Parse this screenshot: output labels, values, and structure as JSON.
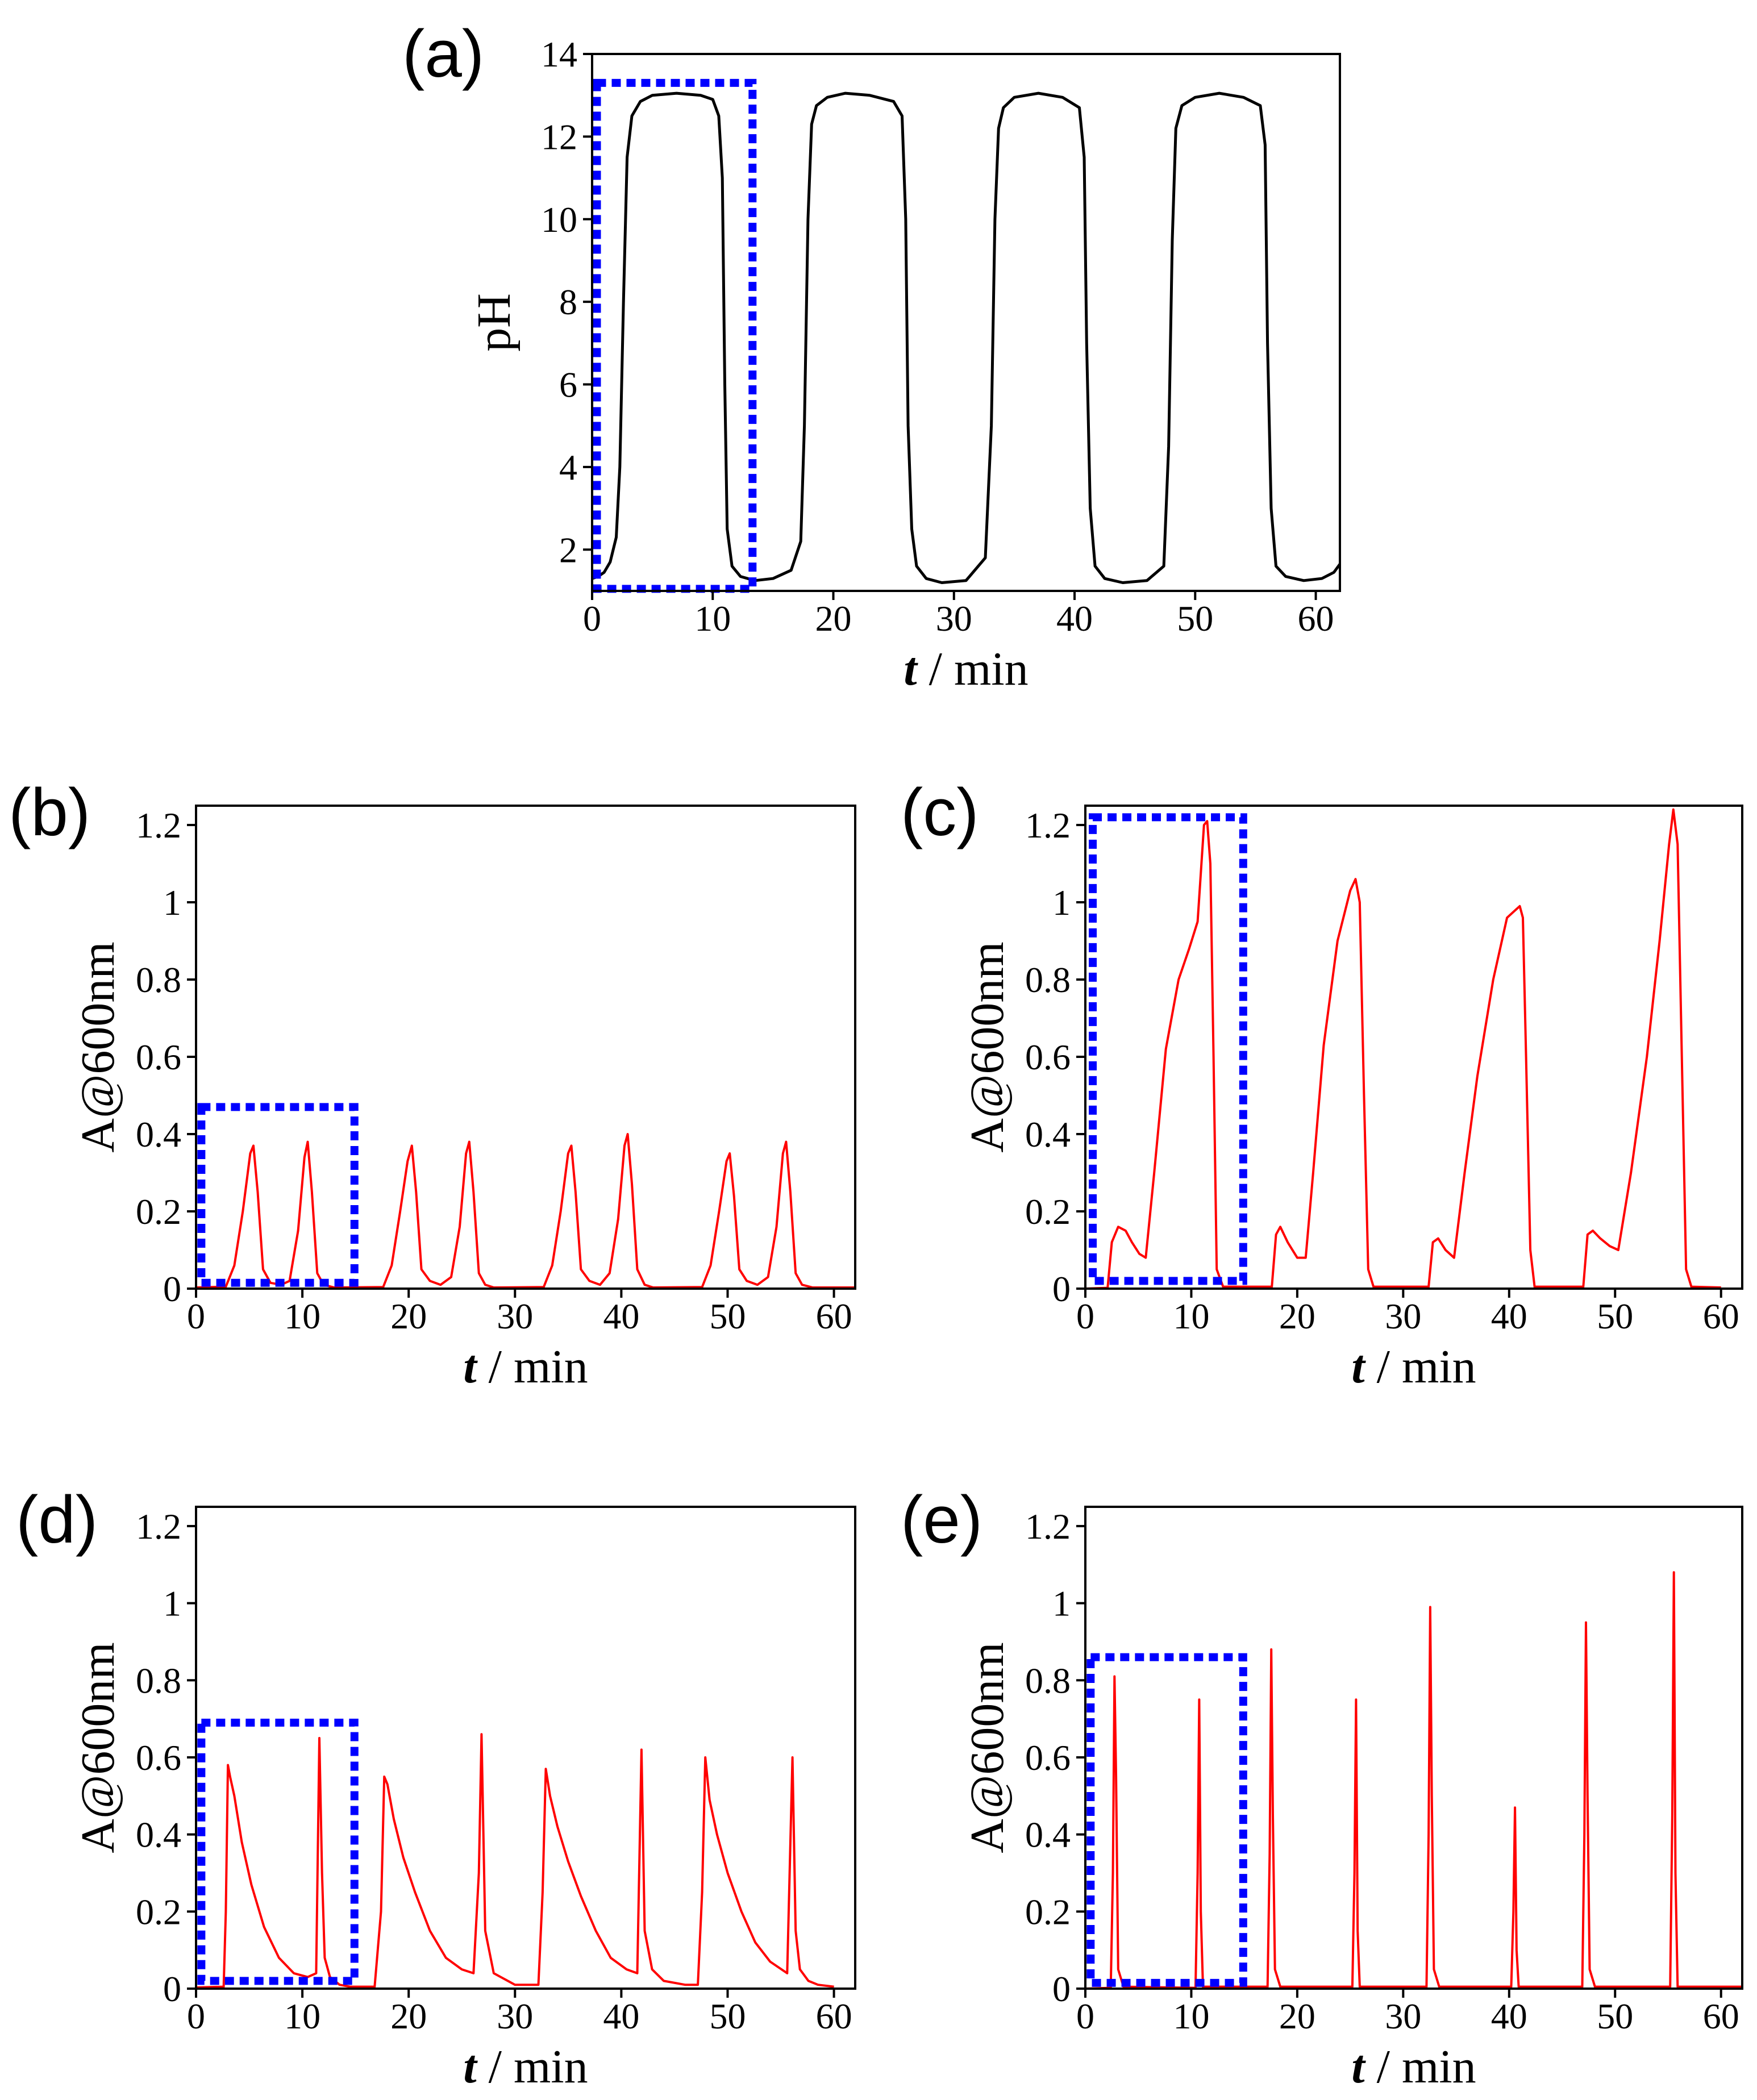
{
  "figure": {
    "colors": {
      "ph_line": "#000000",
      "absorbance_line": "#ff0000",
      "highlight_box": "#0000ff",
      "axes": "#000000",
      "background": "#ffffff"
    }
  },
  "chart_data": [
    {
      "id": "a",
      "panel_label": "(a)",
      "type": "line",
      "title": "",
      "xlabel_var": "t",
      "xlabel_unit": "/ min",
      "ylabel": "pH",
      "xlim": [
        0,
        62
      ],
      "ylim": [
        1,
        14
      ],
      "xticks": [
        0,
        10,
        20,
        30,
        40,
        50,
        60
      ],
      "yticks": [
        2,
        4,
        6,
        8,
        10,
        12,
        14
      ],
      "series": [
        {
          "name": "pH",
          "color": "#000000",
          "x": [
            0,
            0.5,
            1,
            1.5,
            2,
            2.3,
            2.6,
            2.9,
            3.3,
            4,
            5,
            7,
            9,
            10,
            10.5,
            10.8,
            11,
            11.2,
            11.6,
            12.3,
            13.5,
            15,
            16.5,
            17.3,
            17.6,
            17.9,
            18.2,
            18.6,
            19.5,
            21,
            23,
            25,
            25.7,
            26,
            26.2,
            26.5,
            26.9,
            27.7,
            29,
            31,
            32.6,
            33.1,
            33.4,
            33.7,
            34.1,
            35,
            37,
            39,
            40.4,
            40.8,
            41,
            41.3,
            41.7,
            42.5,
            44,
            46,
            47.4,
            47.8,
            48.1,
            48.4,
            48.9,
            50,
            52,
            54,
            55.4,
            55.8,
            56,
            56.3,
            56.7,
            57.5,
            59,
            60.5,
            61.5,
            62
          ],
          "y": [
            1.3,
            1.35,
            1.45,
            1.7,
            2.3,
            4,
            8,
            11.5,
            12.5,
            12.85,
            13,
            13.05,
            13,
            12.9,
            12.5,
            11,
            6,
            2.5,
            1.6,
            1.35,
            1.25,
            1.3,
            1.5,
            2.2,
            5,
            10,
            12.3,
            12.75,
            12.95,
            13.05,
            13,
            12.85,
            12.5,
            10,
            5,
            2.5,
            1.6,
            1.3,
            1.2,
            1.25,
            1.8,
            5,
            10,
            12.2,
            12.7,
            12.95,
            13.05,
            12.95,
            12.7,
            11.5,
            7,
            3,
            1.6,
            1.3,
            1.2,
            1.25,
            1.6,
            4.5,
            9.5,
            12.2,
            12.75,
            12.95,
            13.05,
            12.95,
            12.75,
            11.8,
            7,
            3,
            1.6,
            1.35,
            1.25,
            1.3,
            1.45,
            1.65
          ]
        }
      ],
      "highlight_box": {
        "x": [
          0.4,
          13.3
        ],
        "y": [
          1.05,
          13.3
        ]
      }
    },
    {
      "id": "b",
      "panel_label": "(b)",
      "type": "line",
      "title": "",
      "xlabel_var": "t",
      "xlabel_unit": "/ min",
      "ylabel": "A@600nm",
      "xlim": [
        0,
        62
      ],
      "ylim": [
        0,
        1.25
      ],
      "xticks": [
        0,
        10,
        20,
        30,
        40,
        50,
        60
      ],
      "yticks": [
        0,
        0.2,
        0.4,
        0.6,
        0.8,
        1,
        1.2
      ],
      "series": [
        {
          "name": "A@600nm",
          "color": "#ff0000",
          "x": [
            0,
            2.8,
            3.6,
            4.4,
            5.1,
            5.4,
            5.8,
            6.3,
            7.0,
            8.0,
            8.8,
            9.6,
            10.2,
            10.5,
            10.9,
            11.4,
            12.0,
            13.0,
            17.6,
            18.4,
            19.2,
            19.9,
            20.3,
            20.7,
            21.2,
            22.0,
            23.0,
            24.0,
            24.8,
            25.4,
            25.7,
            26.1,
            26.6,
            27.2,
            28.0,
            32.7,
            33.5,
            34.3,
            35.0,
            35.3,
            35.7,
            36.2,
            37.0,
            38.0,
            38.9,
            39.7,
            40.3,
            40.6,
            41.0,
            41.5,
            42.2,
            43.0,
            47.6,
            48.4,
            49.2,
            49.9,
            50.2,
            50.6,
            51.1,
            51.8,
            52.8,
            53.8,
            54.6,
            55.2,
            55.5,
            55.9,
            56.4,
            57.0,
            58.0,
            62
          ],
          "y": [
            0.003,
            0.005,
            0.06,
            0.2,
            0.35,
            0.37,
            0.25,
            0.05,
            0.015,
            0.01,
            0.02,
            0.15,
            0.34,
            0.38,
            0.25,
            0.04,
            0.01,
            0.003,
            0.004,
            0.06,
            0.2,
            0.33,
            0.37,
            0.25,
            0.05,
            0.02,
            0.01,
            0.03,
            0.16,
            0.35,
            0.38,
            0.25,
            0.04,
            0.01,
            0.003,
            0.004,
            0.06,
            0.2,
            0.35,
            0.37,
            0.25,
            0.05,
            0.02,
            0.01,
            0.04,
            0.18,
            0.37,
            0.4,
            0.27,
            0.05,
            0.01,
            0.003,
            0.004,
            0.06,
            0.2,
            0.33,
            0.35,
            0.24,
            0.05,
            0.02,
            0.01,
            0.03,
            0.16,
            0.35,
            0.38,
            0.25,
            0.04,
            0.01,
            0.003,
            0.003
          ]
        }
      ],
      "highlight_box": {
        "x": [
          0.5,
          14.9
        ],
        "y": [
          0.015,
          0.47
        ]
      }
    },
    {
      "id": "c",
      "panel_label": "(c)",
      "type": "line",
      "title": "",
      "xlabel_var": "t",
      "xlabel_unit": "/ min",
      "ylabel": "A@600nm",
      "xlim": [
        0,
        62
      ],
      "ylim": [
        0,
        1.25
      ],
      "xticks": [
        0,
        10,
        20,
        30,
        40,
        50,
        60
      ],
      "yticks": [
        0,
        0.2,
        0.4,
        0.6,
        0.8,
        1,
        1.2
      ],
      "series": [
        {
          "name": "A@600nm",
          "color": "#ff0000",
          "x": [
            0,
            2.1,
            2.5,
            3.1,
            3.8,
            4.4,
            5.1,
            5.7,
            6.5,
            7.6,
            8.8,
            9.8,
            10.6,
            11.2,
            11.5,
            11.8,
            12.1,
            12.4,
            13.0,
            17.6,
            18.0,
            18.4,
            19.1,
            20.0,
            20.8,
            21.5,
            22.5,
            23.8,
            25.0,
            25.5,
            25.9,
            26.3,
            26.7,
            27.2,
            32.4,
            32.8,
            33.3,
            34.0,
            34.8,
            35.8,
            37.0,
            38.5,
            39.8,
            40.6,
            41.0,
            41.3,
            41.6,
            42.0,
            42.4,
            47.0,
            47.4,
            47.9,
            48.6,
            49.5,
            50.3,
            51.5,
            53.0,
            54.2,
            55.1,
            55.5,
            55.9,
            56.3,
            56.7,
            57.2,
            60
          ],
          "y": [
            0,
            0.002,
            0.12,
            0.16,
            0.15,
            0.12,
            0.09,
            0.08,
            0.3,
            0.62,
            0.8,
            0.88,
            0.95,
            1.2,
            1.21,
            1.1,
            0.6,
            0.05,
            0.005,
            0.005,
            0.14,
            0.16,
            0.12,
            0.08,
            0.08,
            0.3,
            0.63,
            0.9,
            1.03,
            1.06,
            1.0,
            0.5,
            0.05,
            0.005,
            0.005,
            0.12,
            0.13,
            0.1,
            0.08,
            0.3,
            0.55,
            0.8,
            0.96,
            0.98,
            0.99,
            0.96,
            0.6,
            0.1,
            0.005,
            0.005,
            0.14,
            0.15,
            0.13,
            0.11,
            0.1,
            0.3,
            0.6,
            0.9,
            1.15,
            1.24,
            1.15,
            0.6,
            0.05,
            0.005,
            0.003
          ]
        }
      ],
      "highlight_box": {
        "x": [
          0.7,
          14.9
        ],
        "y": [
          0.02,
          1.22
        ]
      }
    },
    {
      "id": "d",
      "panel_label": "(d)",
      "type": "line",
      "title": "",
      "xlabel_var": "t",
      "xlabel_unit": "/ min",
      "ylabel": "A@600nm",
      "xlim": [
        0,
        62
      ],
      "ylim": [
        0,
        1.25
      ],
      "xticks": [
        0,
        10,
        20,
        30,
        40,
        50,
        60
      ],
      "yticks": [
        0,
        0.2,
        0.4,
        0.6,
        0.8,
        1,
        1.2
      ],
      "series": [
        {
          "name": "A@600nm",
          "color": "#ff0000",
          "x": [
            0,
            2.6,
            2.8,
            3.0,
            3.2,
            3.6,
            4.3,
            5.2,
            6.4,
            7.8,
            9.2,
            10.5,
            11.3,
            11.6,
            11.85,
            12.1,
            12.6,
            13.5,
            14.5,
            16.8,
            17.4,
            17.7,
            18.0,
            18.6,
            19.5,
            20.6,
            22.0,
            23.5,
            25.0,
            26.1,
            26.6,
            26.85,
            27.2,
            28.0,
            30.0,
            32.2,
            32.6,
            32.9,
            33.3,
            34.0,
            35.0,
            36.2,
            37.6,
            39.0,
            40.5,
            41.5,
            41.9,
            42.2,
            42.9,
            44.0,
            46.0,
            47.2,
            47.6,
            47.9,
            48.3,
            49.0,
            50.0,
            51.3,
            52.6,
            54.0,
            55.6,
            56.1,
            56.4,
            56.8,
            57.6,
            58.5,
            60
          ],
          "y": [
            0.003,
            0.005,
            0.2,
            0.58,
            0.55,
            0.5,
            0.38,
            0.27,
            0.16,
            0.08,
            0.04,
            0.03,
            0.04,
            0.65,
            0.3,
            0.08,
            0.03,
            0.01,
            0.005,
            0.005,
            0.2,
            0.55,
            0.53,
            0.44,
            0.34,
            0.25,
            0.15,
            0.08,
            0.05,
            0.04,
            0.3,
            0.66,
            0.15,
            0.04,
            0.01,
            0.01,
            0.25,
            0.57,
            0.5,
            0.42,
            0.33,
            0.24,
            0.15,
            0.08,
            0.05,
            0.04,
            0.62,
            0.15,
            0.05,
            0.02,
            0.01,
            0.01,
            0.25,
            0.6,
            0.49,
            0.4,
            0.3,
            0.2,
            0.12,
            0.07,
            0.04,
            0.6,
            0.15,
            0.05,
            0.02,
            0.01,
            0.005
          ]
        }
      ],
      "highlight_box": {
        "x": [
          0.5,
          14.9
        ],
        "y": [
          0.02,
          0.69
        ]
      }
    },
    {
      "id": "e",
      "panel_label": "(e)",
      "type": "line",
      "title": "",
      "xlabel_var": "t",
      "xlabel_unit": "/ min",
      "ylabel": "A@600nm",
      "xlim": [
        0,
        62
      ],
      "ylim": [
        0,
        1.25
      ],
      "xticks": [
        0,
        10,
        20,
        30,
        40,
        50,
        60
      ],
      "yticks": [
        0,
        0.2,
        0.4,
        0.6,
        0.8,
        1,
        1.2
      ],
      "series": [
        {
          "name": "A@600nm",
          "color": "#ff0000",
          "x": [
            0,
            2.4,
            2.6,
            2.75,
            2.9,
            3.1,
            3.6,
            10.4,
            10.6,
            10.75,
            10.9,
            11.1,
            17.2,
            17.4,
            17.55,
            17.7,
            17.9,
            18.4,
            25.2,
            25.4,
            25.55,
            25.7,
            25.9,
            32.2,
            32.4,
            32.55,
            32.7,
            32.9,
            33.4,
            40.2,
            40.4,
            40.55,
            40.7,
            40.9,
            46.9,
            47.1,
            47.25,
            47.4,
            47.6,
            48.1,
            55.2,
            55.4,
            55.55,
            55.7,
            55.9,
            62
          ],
          "y": [
            0,
            0.002,
            0.3,
            0.81,
            0.55,
            0.05,
            0.005,
            0.002,
            0.3,
            0.75,
            0.2,
            0.005,
            0.005,
            0.35,
            0.88,
            0.45,
            0.05,
            0.005,
            0.005,
            0.3,
            0.75,
            0.15,
            0.005,
            0.005,
            0.4,
            0.99,
            0.5,
            0.05,
            0.005,
            0.005,
            0.2,
            0.47,
            0.1,
            0.005,
            0.005,
            0.4,
            0.95,
            0.5,
            0.05,
            0.005,
            0.005,
            0.45,
            1.08,
            0.3,
            0.005,
            0.005
          ]
        }
      ],
      "highlight_box": {
        "x": [
          0.5,
          14.9
        ],
        "y": [
          0.015,
          0.86
        ]
      }
    }
  ]
}
